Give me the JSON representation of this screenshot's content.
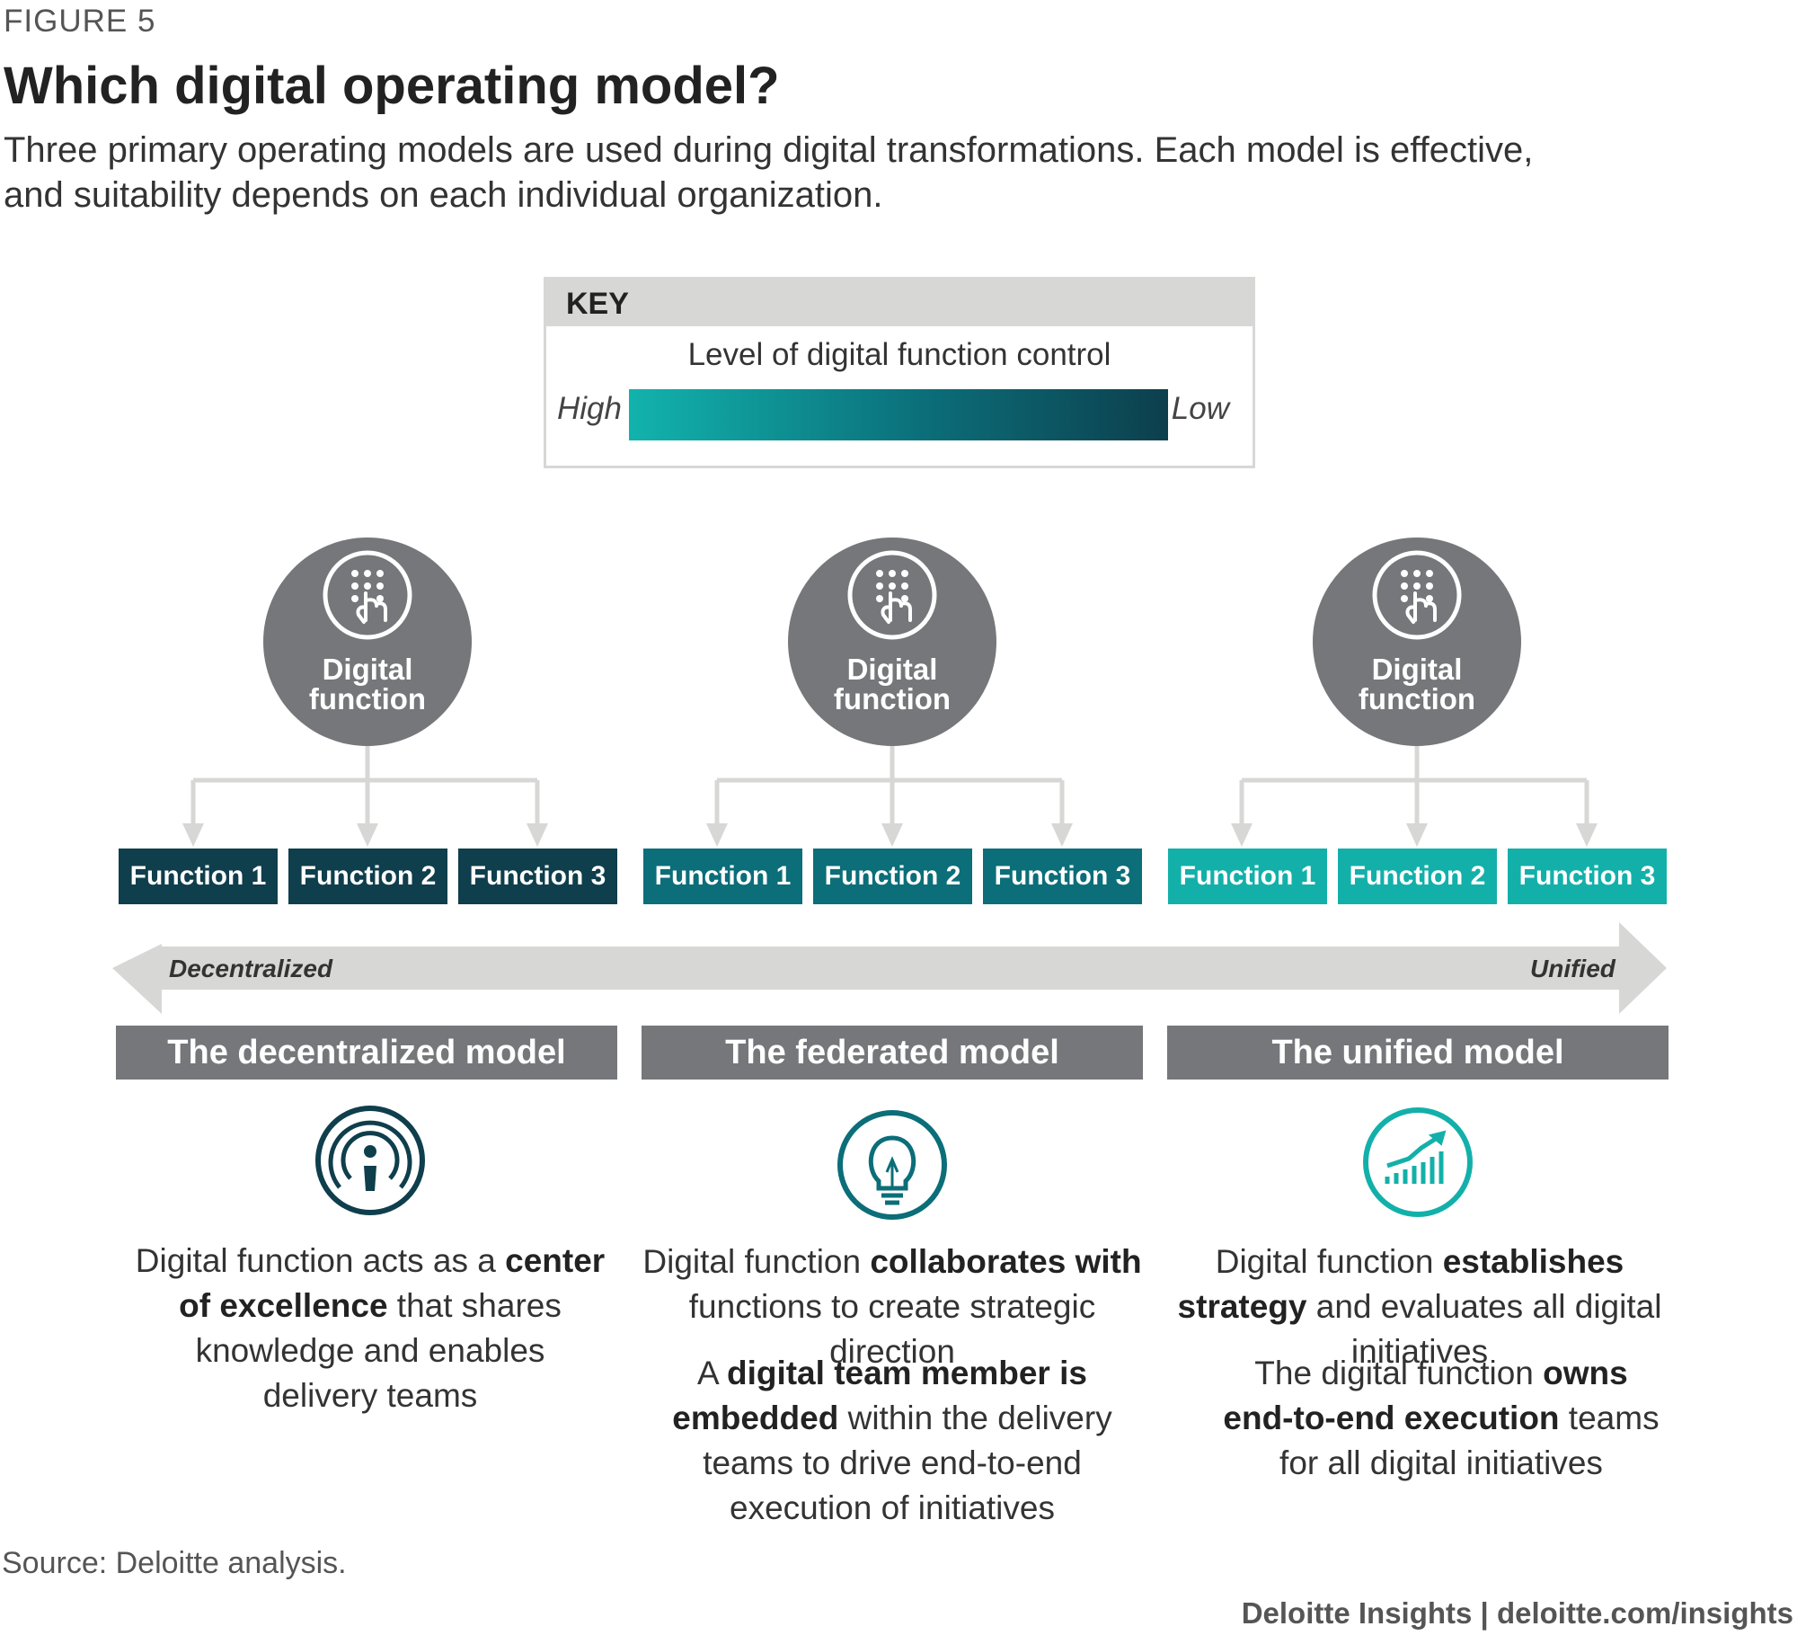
{
  "header": {
    "figure_label": "FIGURE 5",
    "title": "Which digital operating model?",
    "subtitle": "Three primary operating models are used during digital transformations. Each model is effective, and suitability depends on each individual organization."
  },
  "key": {
    "heading": "KEY",
    "caption": "Level of digital function control",
    "high_label": "High",
    "low_label": "Low",
    "gradient_colors": [
      "#12b3ad",
      "#0b6e79",
      "#0d3f4d"
    ]
  },
  "colors": {
    "circle": "#75777a",
    "connector": "#d7d8d6",
    "function_dark": "#0f3e4c",
    "function_mid": "#0b6e79",
    "function_light": "#13b0aa",
    "model_bar": "#75777a"
  },
  "models": [
    {
      "hub_line1": "Digital",
      "hub_line2": "function",
      "hub_icon": "touch-keypad-icon",
      "functions": [
        "Function 1",
        "Function 2",
        "Function 3"
      ],
      "name": "The decentralized model",
      "model_icon": "broadcast-person-icon",
      "desc1": [
        "Digital function acts as a ",
        "center of excellence",
        " that shares knowledge and enables delivery teams"
      ]
    },
    {
      "hub_line1": "Digital",
      "hub_line2": "function",
      "hub_icon": "touch-keypad-icon",
      "functions": [
        "Function 1",
        "Function 2",
        "Function 3"
      ],
      "name": "The federated model",
      "model_icon": "lightbulb-icon",
      "desc1": [
        "Digital function ",
        "collaborates with",
        " functions to create strategic direction"
      ],
      "desc2": [
        "A ",
        "digital team member is embedded",
        " within the delivery teams to drive end-to-end execution of initiatives"
      ]
    },
    {
      "hub_line1": "Digital",
      "hub_line2": "function",
      "hub_icon": "touch-keypad-icon",
      "functions": [
        "Function 1",
        "Function 2",
        "Function 3"
      ],
      "name": "The unified model",
      "model_icon": "growth-chart-icon",
      "desc1": [
        "Digital function ",
        "establishes strategy",
        " and evaluates all digital initiatives"
      ],
      "desc2": [
        "The digital function ",
        "owns end-to-end execution",
        " teams for all digital initiatives"
      ]
    }
  ],
  "axis": {
    "left_label": "Decentralized",
    "right_label": "Unified"
  },
  "source": "Source: Deloitte analysis.",
  "footer": "Deloitte Insights | deloitte.com/insights"
}
